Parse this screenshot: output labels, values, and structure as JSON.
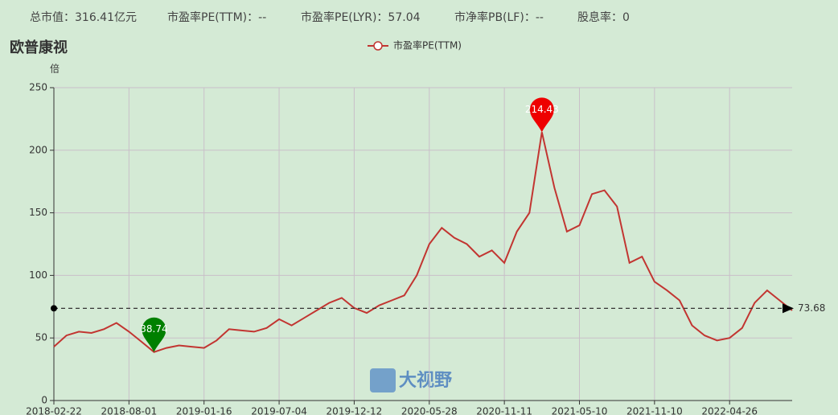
{
  "header": [
    "总市值：316.41亿元",
    "市盈率PE(TTM)：--",
    "市盈率PE(LYR)：57.04",
    "市净率PB(LF)：--",
    "股息率：0"
  ],
  "chart_data": {
    "type": "line",
    "title": "欧普康视",
    "y_label": "倍",
    "watermark": "大视野",
    "categories": [
      "2018-02-22",
      null,
      null,
      null,
      null,
      null,
      "2018-08-01",
      null,
      null,
      null,
      null,
      null,
      "2019-01-16",
      null,
      null,
      null,
      null,
      null,
      "2019-07-04",
      null,
      null,
      null,
      null,
      null,
      "2019-12-12",
      null,
      null,
      null,
      null,
      null,
      "2020-05-28",
      null,
      null,
      null,
      null,
      null,
      "2020-11-11",
      null,
      null,
      null,
      null,
      null,
      "2021-05-10",
      null,
      null,
      null,
      null,
      null,
      "2021-11-10",
      null,
      null,
      null,
      null,
      null,
      "2022-04-26",
      null,
      null,
      null,
      null,
      null
    ],
    "series": [
      {
        "name": "市盈率PE(TTM)",
        "color": "#c23531",
        "values": [
          43,
          52,
          55,
          54,
          57,
          62,
          55,
          47,
          38.74,
          42,
          44,
          43,
          42,
          48,
          57,
          56,
          55,
          58,
          65,
          60,
          66,
          72,
          78,
          82,
          74,
          70,
          76,
          80,
          84,
          100,
          125,
          138,
          130,
          125,
          115,
          120,
          110,
          135,
          150,
          214.43,
          170,
          135,
          140,
          165,
          168,
          155,
          110,
          115,
          95,
          88,
          80,
          60,
          52,
          48,
          50,
          58,
          78,
          88,
          80,
          72
        ]
      }
    ],
    "average_line": 73.68,
    "max_color": "#ee0000",
    "min_color": "#008000",
    "ylim": [
      0,
      250
    ],
    "yticks": [
      0,
      50,
      100,
      150,
      200,
      250
    ],
    "grid": true
  }
}
